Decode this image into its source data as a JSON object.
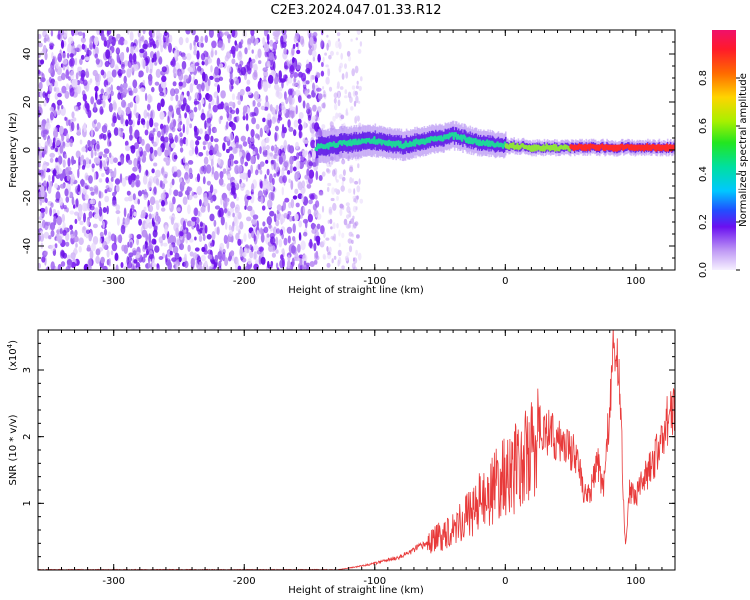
{
  "title": "C2E3.2024.047.01.33.R12",
  "colors": {
    "series": "#e83a3a",
    "spec_primary": "#7a1ef0",
    "spec_light": "#c9a6f5",
    "spec_ridge": "#1fd69a"
  },
  "chart_data": [
    {
      "type": "heatmap",
      "xlabel": "Height of straight line (km)",
      "ylabel": "Frequency (Hz)",
      "xlim": [
        -358,
        130
      ],
      "ylim": [
        -50,
        50
      ],
      "xticks": [
        -300,
        -200,
        -100,
        0,
        100
      ],
      "yticks": [
        -40,
        -20,
        0,
        20,
        40
      ],
      "colorbar": {
        "label": "Normalized spectral amplitude",
        "range": [
          0,
          1
        ],
        "ticks": [
          0.0,
          0.2,
          0.4,
          0.6,
          0.8
        ],
        "tick_labels": [
          "0.0",
          "0.2",
          "0.4",
          "0.6",
          "0.8"
        ],
        "colormap": "rainbow"
      },
      "regions": [
        {
          "x_range": [
            -358,
            -140
          ],
          "description_values": {
            "amplitude_min": 0.05,
            "amplitude_max": 0.3
          },
          "freq_range": [
            -50,
            50
          ]
        },
        {
          "x_range": [
            -140,
            -110
          ],
          "description_values": {
            "amplitude_min": 0.02,
            "amplitude_max": 0.12
          },
          "freq_range": [
            -50,
            50
          ]
        }
      ],
      "ridge": {
        "x": [
          -145,
          -120,
          -100,
          -80,
          -60,
          -40,
          -20,
          0,
          20,
          40,
          60,
          80,
          100,
          130
        ],
        "freq": [
          1,
          3,
          4,
          2,
          4,
          6,
          3,
          2,
          1,
          1,
          1,
          1,
          1,
          1
        ],
        "amplitude": [
          0.4,
          0.45,
          0.5,
          0.5,
          0.55,
          0.55,
          0.6,
          0.65,
          0.7,
          0.75,
          0.85,
          0.88,
          0.88,
          0.85
        ]
      }
    },
    {
      "type": "line",
      "xlabel": "Height of straight line (km)",
      "ylabel": "SNR (10 * v/v)",
      "scale_label": "(x10",
      "scale_exp": "4",
      "scale_close": ")",
      "xlim": [
        -358,
        130
      ],
      "ylim": [
        0,
        3.6
      ],
      "xticks": [
        -300,
        -200,
        -100,
        0,
        100
      ],
      "yticks": [
        1,
        2,
        3
      ],
      "series": [
        {
          "x": [
            -358,
            -200,
            -130,
            -120,
            -110,
            -100,
            -90,
            -80,
            -70,
            -60,
            -50,
            -40,
            -30,
            -20,
            -10,
            0,
            10,
            20,
            27,
            30,
            40,
            50,
            55,
            60,
            65,
            70,
            75,
            80,
            84,
            88,
            92,
            95,
            100,
            105,
            110,
            115,
            120,
            125,
            130
          ],
          "y": [
            0.0,
            0.0,
            0.0,
            0.03,
            0.06,
            0.1,
            0.15,
            0.2,
            0.3,
            0.4,
            0.5,
            0.65,
            0.8,
            1.0,
            1.2,
            1.4,
            1.55,
            1.75,
            2.2,
            2.1,
            1.95,
            1.8,
            1.75,
            1.1,
            1.1,
            1.7,
            1.2,
            2.4,
            3.5,
            2.5,
            0.3,
            1.2,
            1.1,
            1.3,
            1.5,
            1.7,
            2.0,
            2.3,
            2.5
          ]
        }
      ]
    }
  ]
}
